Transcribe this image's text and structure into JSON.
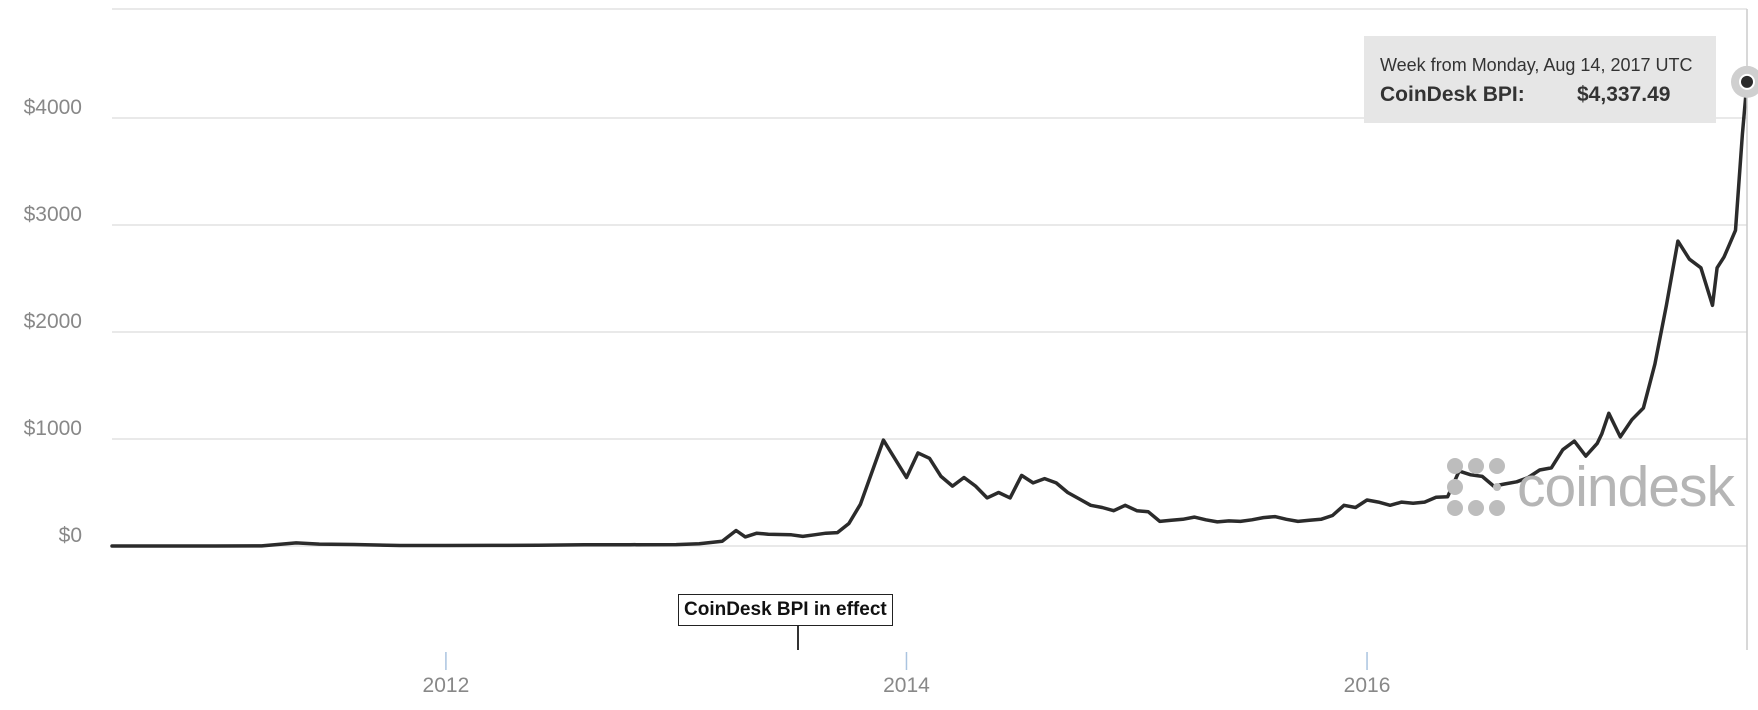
{
  "chart_data": {
    "type": "line",
    "series": [
      {
        "x": [
          2010.55,
          2010.8,
          2011.0,
          2011.2,
          2011.35,
          2011.45,
          2011.6,
          2011.8,
          2012.0,
          2012.2,
          2012.4,
          2012.6,
          2012.8,
          2013.0,
          2013.1,
          2013.2,
          2013.26,
          2013.3,
          2013.35,
          2013.4,
          2013.5,
          2013.55,
          2013.6,
          2013.65,
          2013.7,
          2013.75,
          2013.8,
          2013.9,
          2014.0,
          2014.05,
          2014.1,
          2014.15,
          2014.2,
          2014.25,
          2014.3,
          2014.35,
          2014.4,
          2014.45,
          2014.5,
          2014.55,
          2014.6,
          2014.65,
          2014.7,
          2014.75,
          2014.8,
          2014.85,
          2014.9,
          2014.95,
          2015.0,
          2015.05,
          2015.1,
          2015.15,
          2015.2,
          2015.25,
          2015.3,
          2015.35,
          2015.4,
          2015.45,
          2015.5,
          2015.55,
          2015.6,
          2015.65,
          2015.7,
          2015.75,
          2015.8,
          2015.85,
          2015.9,
          2015.95,
          2016.0,
          2016.05,
          2016.1,
          2016.15,
          2016.2,
          2016.25,
          2016.3,
          2016.35,
          2016.4,
          2016.45,
          2016.5,
          2016.55,
          2016.6,
          2016.65,
          2016.7,
          2016.75,
          2016.8,
          2016.85,
          2016.9,
          2016.95,
          2017.0,
          2017.02,
          2017.05,
          2017.1,
          2017.15,
          2017.2,
          2017.25,
          2017.3,
          2017.35,
          2017.4,
          2017.45,
          2017.5,
          2017.52,
          2017.55,
          2017.57,
          2017.6,
          2017.63,
          2017.65
        ],
        "y": [
          0.07,
          0.2,
          0.3,
          1.0,
          29,
          18,
          14,
          5,
          5,
          6,
          7,
          11,
          12,
          13,
          21,
          45,
          145,
          85,
          120,
          110,
          105,
          90,
          105,
          120,
          125,
          210,
          390,
          990,
          640,
          870,
          820,
          650,
          560,
          640,
          560,
          450,
          500,
          450,
          660,
          590,
          630,
          590,
          500,
          440,
          380,
          360,
          330,
          380,
          330,
          320,
          230,
          240,
          250,
          270,
          245,
          225,
          235,
          230,
          245,
          265,
          275,
          250,
          230,
          240,
          250,
          285,
          380,
          360,
          430,
          410,
          380,
          410,
          400,
          410,
          455,
          460,
          700,
          665,
          650,
          560,
          580,
          600,
          640,
          710,
          730,
          900,
          980,
          840,
          960,
          1050,
          1240,
          1020,
          1180,
          1290,
          1700,
          2250,
          2850,
          2680,
          2600,
          2250,
          2600,
          2700,
          2800,
          2950,
          3850,
          4337.49
        ]
      }
    ],
    "yticks": [
      "$0",
      "$1000",
      "$2000",
      "$3000",
      "$4000"
    ],
    "ytick_values": [
      0,
      1000,
      2000,
      3000,
      4000
    ],
    "xticks": [
      "2012",
      "2014",
      "2016"
    ],
    "xtick_values": [
      2012,
      2014,
      2016
    ],
    "xlim": [
      2010.55,
      2017.65
    ],
    "ylim": [
      -1000,
      5000
    ],
    "grid": true,
    "annotation": {
      "label": "CoinDesk BPI in effect",
      "x": 2013.5
    },
    "tooltip": {
      "heading": "Week from Monday, Aug 14, 2017 UTC",
      "series_label": "CoinDesk BPI:",
      "value": "$4,337.49"
    },
    "watermark": "coindesk",
    "colors": {
      "line": "#2b2b2b",
      "tooltip_bg": "#e6e6e6",
      "grid": "#e2e2e2",
      "watermark": "#b5b5b5"
    }
  }
}
